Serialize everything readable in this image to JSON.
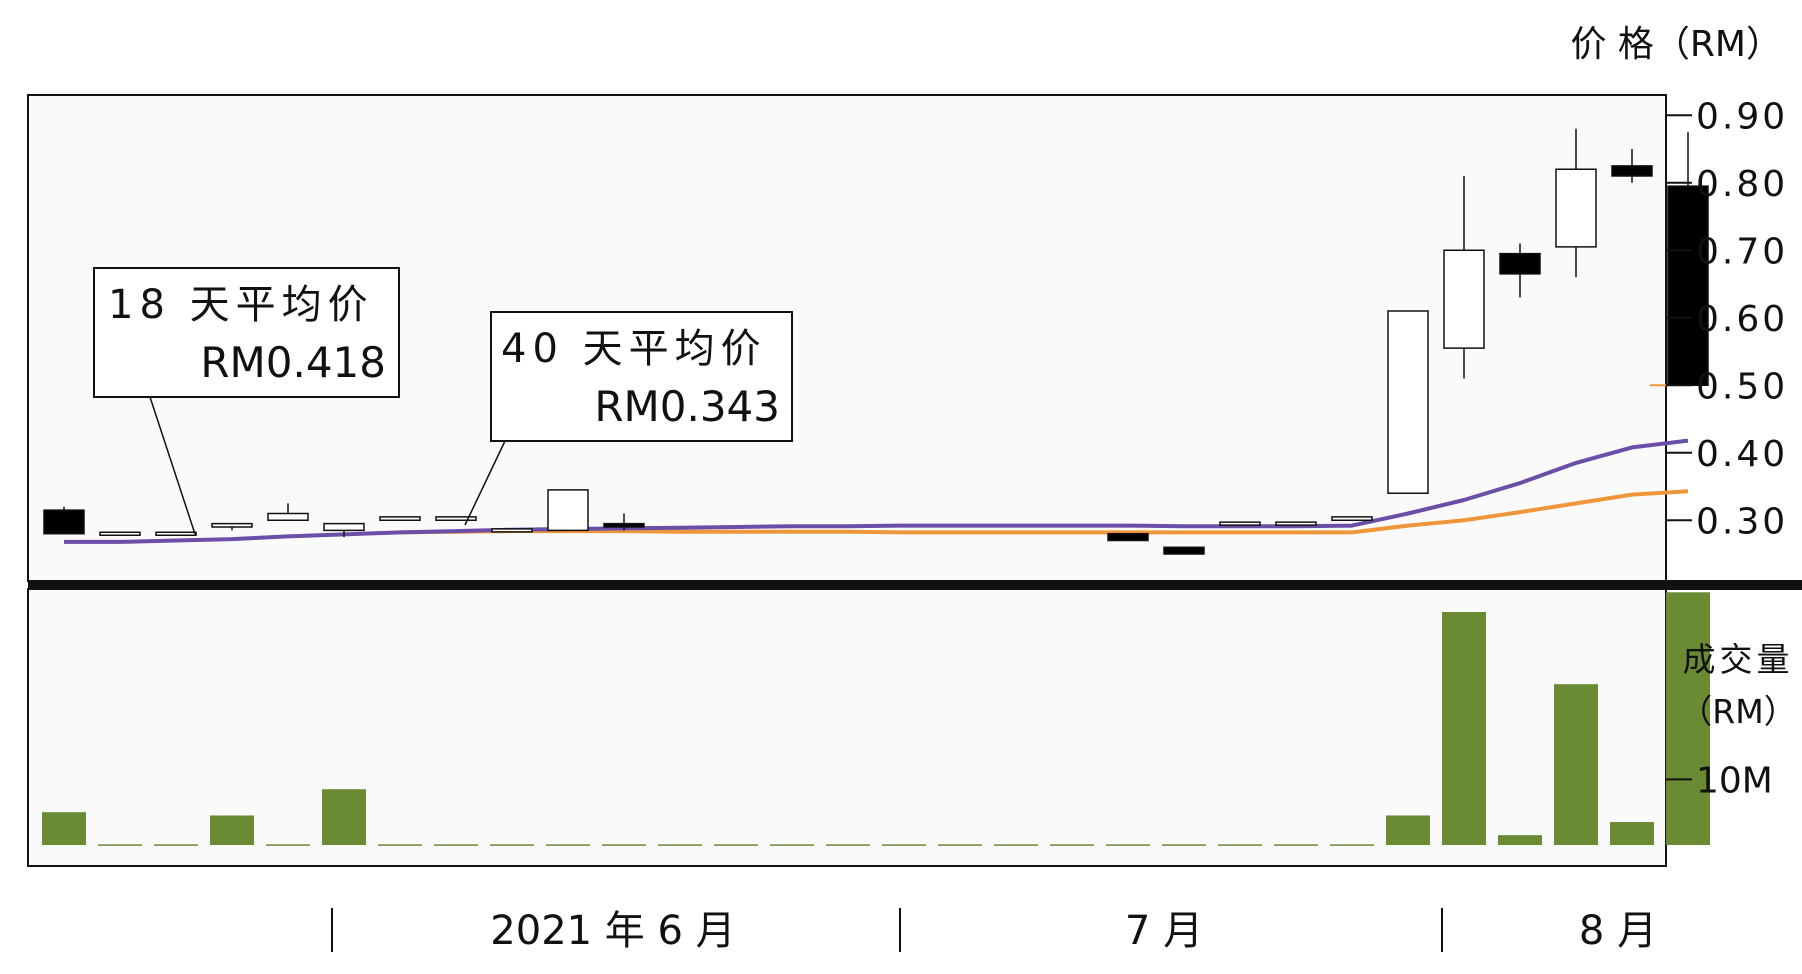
{
  "chart_data": {
    "type": "candlestick",
    "price_axis": {
      "unit_label": "价 格（RM）",
      "ticks": [
        "0.90",
        "0.80",
        "0.70",
        "0.60",
        "0.50",
        "0.40",
        "0.30"
      ],
      "tick_values": [
        0.9,
        0.8,
        0.7,
        0.6,
        0.5,
        0.4,
        0.3
      ],
      "ylim": [
        0.21,
        0.93
      ]
    },
    "volume_axis": {
      "unit_label_line1": "成交量",
      "unit_label_line2": "（RM）",
      "ticks": [
        "10M"
      ],
      "tick_values": [
        10
      ],
      "ylim": [
        0,
        39
      ]
    },
    "x_labels": [
      "2021 年 6 月",
      "7 月",
      "8 月"
    ],
    "colors": {
      "ma18": "#6b4ea8",
      "ma40": "#f0963a",
      "volume": "#6a8a34",
      "up_fill": "#ffffff",
      "down_fill": "#000000"
    },
    "annotations": [
      {
        "title": "18 天平均价",
        "value": "RM0.418",
        "series": "ma18"
      },
      {
        "title": "40 天平均价",
        "value": "RM0.343",
        "series": "ma40"
      }
    ],
    "candles": [
      {
        "i": 0,
        "o": 0.315,
        "h": 0.32,
        "l": 0.28,
        "c": 0.28
      },
      {
        "i": 1,
        "o": 0.28,
        "h": 0.28,
        "l": 0.28,
        "c": 0.28
      },
      {
        "i": 2,
        "o": 0.28,
        "h": 0.28,
        "l": 0.28,
        "c": 0.28
      },
      {
        "i": 3,
        "o": 0.29,
        "h": 0.295,
        "l": 0.285,
        "c": 0.295
      },
      {
        "i": 4,
        "o": 0.3,
        "h": 0.325,
        "l": 0.3,
        "c": 0.31
      },
      {
        "i": 5,
        "o": 0.285,
        "h": 0.295,
        "l": 0.275,
        "c": 0.295
      },
      {
        "i": 6,
        "o": 0.3,
        "h": 0.3,
        "l": 0.3,
        "c": 0.305
      },
      {
        "i": 7,
        "o": 0.3,
        "h": 0.305,
        "l": 0.3,
        "c": 0.305
      },
      {
        "i": 8,
        "o": 0.285,
        "h": 0.285,
        "l": 0.285,
        "c": 0.285
      },
      {
        "i": 9,
        "o": 0.285,
        "h": 0.345,
        "l": 0.285,
        "c": 0.345
      },
      {
        "i": 10,
        "o": 0.295,
        "h": 0.31,
        "l": 0.285,
        "c": 0.29
      },
      {
        "i": 19,
        "o": 0.28,
        "h": 0.28,
        "l": 0.27,
        "c": 0.27
      },
      {
        "i": 20,
        "o": 0.26,
        "h": 0.26,
        "l": 0.25,
        "c": 0.25
      },
      {
        "i": 21,
        "o": 0.295,
        "h": 0.295,
        "l": 0.295,
        "c": 0.295
      },
      {
        "i": 22,
        "o": 0.295,
        "h": 0.295,
        "l": 0.295,
        "c": 0.295
      },
      {
        "i": 23,
        "o": 0.3,
        "h": 0.305,
        "l": 0.3,
        "c": 0.305
      },
      {
        "i": 24,
        "o": 0.34,
        "h": 0.61,
        "l": 0.34,
        "c": 0.61
      },
      {
        "i": 25,
        "o": 0.555,
        "h": 0.81,
        "l": 0.51,
        "c": 0.7
      },
      {
        "i": 26,
        "o": 0.695,
        "h": 0.71,
        "l": 0.63,
        "c": 0.665
      },
      {
        "i": 27,
        "o": 0.705,
        "h": 0.88,
        "l": 0.66,
        "c": 0.82
      },
      {
        "i": 28,
        "o": 0.825,
        "h": 0.85,
        "l": 0.8,
        "c": 0.81
      },
      {
        "i": 29,
        "o": 0.795,
        "h": 0.875,
        "l": 0.5,
        "c": 0.5
      }
    ],
    "volumes": [
      5,
      0.1,
      0.1,
      4.5,
      0.1,
      8.5,
      0.1,
      0.1,
      0.1,
      0.1,
      0.1,
      0.1,
      0.1,
      0.1,
      0.1,
      0.1,
      0.1,
      0.1,
      0.1,
      0.1,
      0.1,
      0.1,
      0.1,
      0.1,
      4.5,
      35.5,
      1.5,
      24.5,
      3.5,
      38.5
    ],
    "ma18": [
      0.268,
      0.268,
      0.27,
      0.272,
      0.276,
      0.279,
      0.282,
      0.284,
      0.286,
      0.287,
      0.288,
      0.289,
      0.29,
      0.291,
      0.291,
      0.292,
      0.292,
      0.292,
      0.292,
      0.292,
      0.291,
      0.291,
      0.291,
      0.292,
      0.31,
      0.33,
      0.355,
      0.385,
      0.408,
      0.418
    ],
    "ma40": [
      null,
      null,
      null,
      null,
      null,
      null,
      0.282,
      0.283,
      0.284,
      0.284,
      0.284,
      0.283,
      0.283,
      0.283,
      0.283,
      0.282,
      0.282,
      0.282,
      0.282,
      0.282,
      0.282,
      0.282,
      0.282,
      0.282,
      0.292,
      0.3,
      0.312,
      0.325,
      0.338,
      0.343
    ]
  }
}
